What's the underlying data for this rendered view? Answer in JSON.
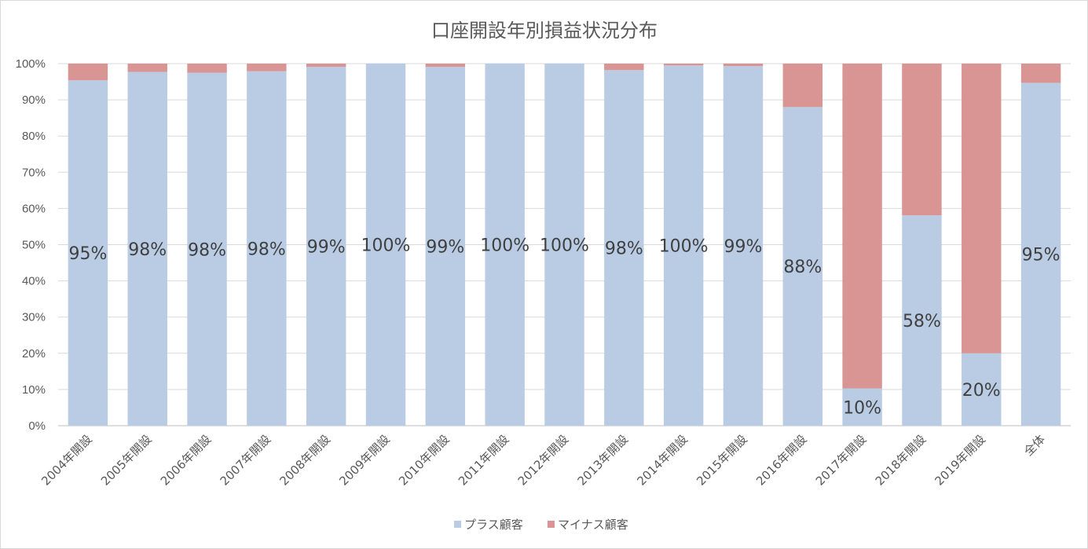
{
  "chart_data": {
    "type": "bar",
    "stacked": true,
    "title": "口座開設年別損益状況分布",
    "categories": [
      "2004年開設",
      "2005年開設",
      "2006年開設",
      "2007年開設",
      "2008年開設",
      "2009年開設",
      "2010年開設",
      "2011年開設",
      "2012年開設",
      "2013年開設",
      "2014年開設",
      "2015年開設",
      "2016年開設",
      "2017年開設",
      "2018年開設",
      "2019年開設",
      "全体"
    ],
    "series": [
      {
        "name": "プラス顧客",
        "color": "#b9cce4",
        "values": [
          95.4,
          97.7,
          97.5,
          97.9,
          99.1,
          100,
          99.1,
          100,
          100,
          98.2,
          99.5,
          99.3,
          88.0,
          10.3,
          58.1,
          20.0,
          94.7
        ]
      },
      {
        "name": "マイナス顧客",
        "color": "#d99594",
        "values": [
          4.6,
          2.3,
          2.5,
          2.1,
          0.9,
          0,
          0.9,
          0,
          0,
          1.8,
          0.5,
          0.7,
          12.0,
          89.7,
          41.9,
          80.0,
          5.3
        ]
      }
    ],
    "data_labels": [
      "95%",
      "98%",
      "98%",
      "98%",
      "99%",
      "100%",
      "99%",
      "100%",
      "100%",
      "98%",
      "100%",
      "99%",
      "88%",
      "10%",
      "58%",
      "20%",
      "95%"
    ],
    "yticks": [
      "0%",
      "10%",
      "20%",
      "30%",
      "40%",
      "50%",
      "60%",
      "70%",
      "80%",
      "90%",
      "100%"
    ],
    "ylim": [
      0,
      100
    ],
    "grid": true,
    "legend_position": "bottom"
  }
}
